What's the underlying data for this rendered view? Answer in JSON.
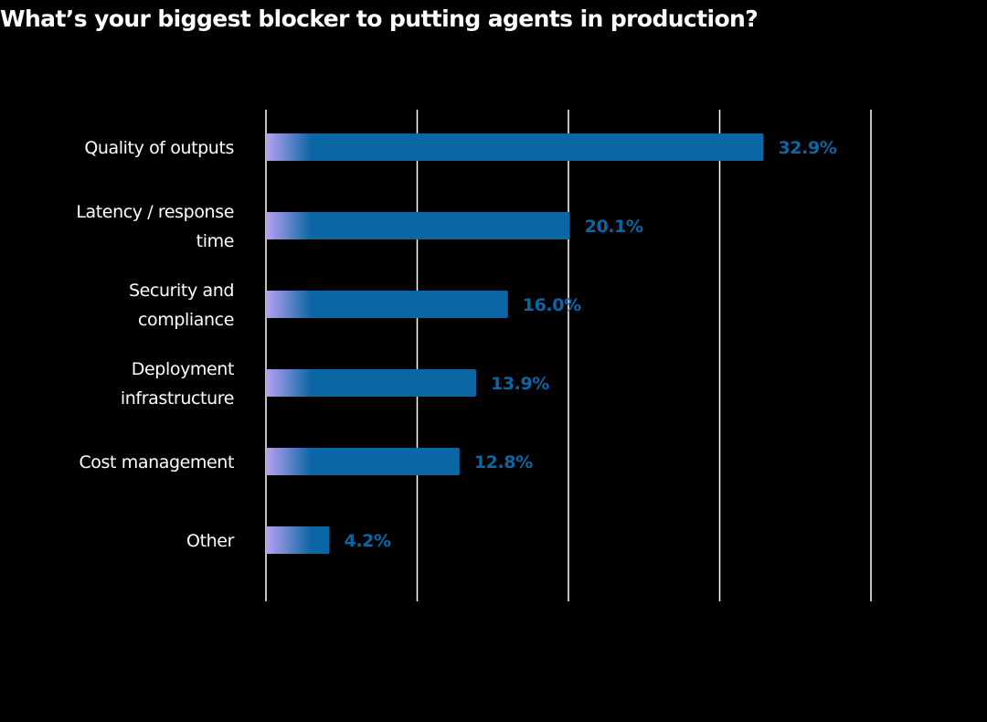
{
  "chart_data": {
    "type": "bar",
    "orientation": "horizontal",
    "title": "What’s your biggest blocker to putting agents in production?",
    "categories": [
      "Quality of outputs",
      "Latency / response time",
      "Security and compliance",
      "Deployment infrastructure",
      "Cost management",
      "Other"
    ],
    "category_lines": [
      [
        "Quality of outputs"
      ],
      [
        "Latency / response",
        "time"
      ],
      [
        "Security and",
        "compliance"
      ],
      [
        "Deployment",
        "infrastructure"
      ],
      [
        "Cost management"
      ],
      [
        "Other"
      ]
    ],
    "values": [
      32.9,
      20.1,
      16.0,
      13.9,
      12.8,
      4.2
    ],
    "data_labels": [
      "32.9%",
      "20.1%",
      "16.0%",
      "13.9%",
      "12.8%",
      "4.2%"
    ],
    "xlim": [
      0,
      40
    ],
    "grid": true,
    "legend": "none",
    "colors": {
      "bar": "#0b66a4",
      "gradient_start": "#b7a2f2",
      "label": "#0b66a4",
      "text": "#ffffff",
      "grid": "#ffffff",
      "background": "#000000"
    }
  }
}
